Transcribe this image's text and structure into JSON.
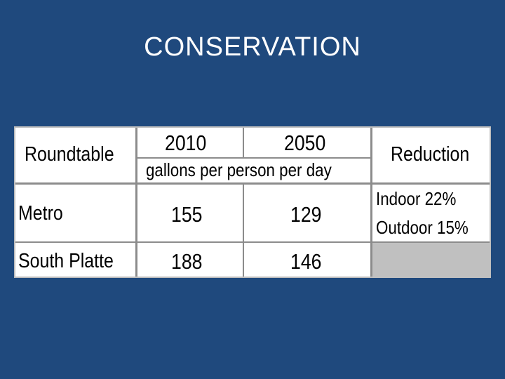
{
  "slide": {
    "title": "CONSERVATION"
  },
  "table": {
    "headers": {
      "roundtable": "Roundtable",
      "year_2010": "2010",
      "year_2050": "2050",
      "units": "gallons per person per day",
      "reduction": "Reduction"
    },
    "rows": [
      {
        "roundtable": "Metro",
        "y2010": "155",
        "y2050": "129",
        "reduction_indoor": "Indoor 22%",
        "reduction_outdoor": "Outdoor 15%"
      },
      {
        "roundtable": "South Platte",
        "y2010": "188",
        "y2050": "146",
        "reduction_indoor": "",
        "reduction_outdoor": ""
      }
    ]
  },
  "colors": {
    "background": "#1f497d",
    "table_background": "#ffffff",
    "empty_cell": "#c0c0c0",
    "grid": "#8c8c8c"
  }
}
